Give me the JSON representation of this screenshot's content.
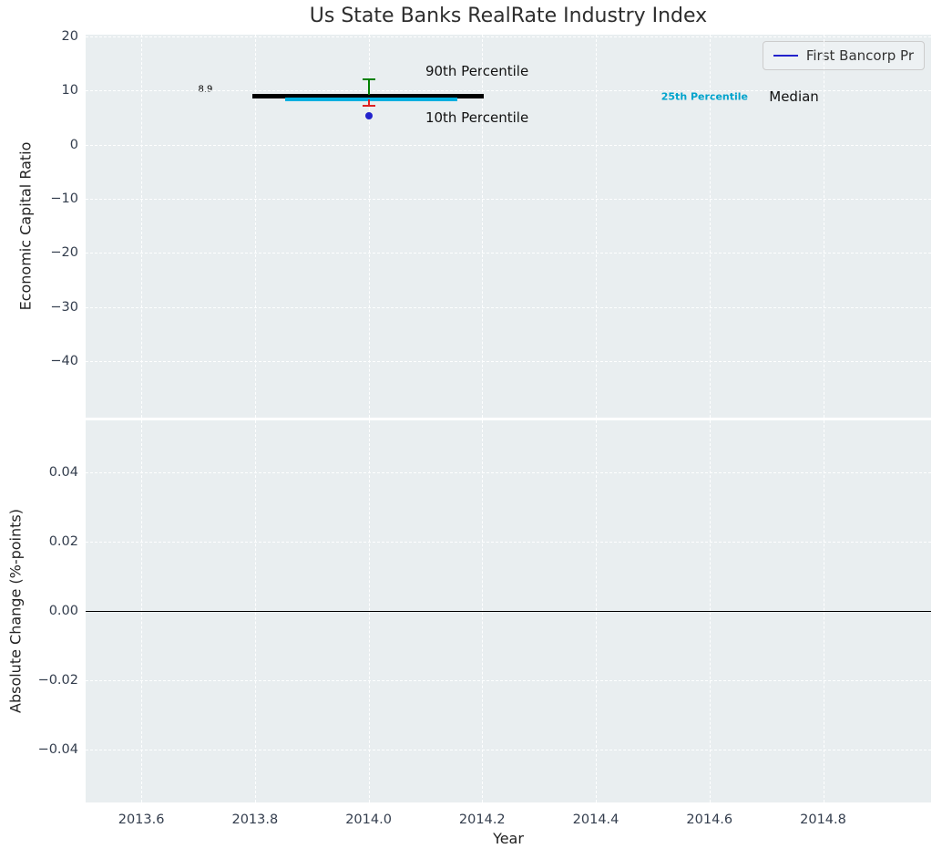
{
  "chart_data": [
    {
      "type": "line",
      "title": "Us State Banks RealRate Industry Index",
      "ylabel": "Economic Capital Ratio",
      "xlim": [
        2013.502,
        2014.99
      ],
      "ylim": [
        -50.4,
        20.3
      ],
      "xtick_values": [
        2013.6,
        2013.8,
        2014.0,
        2014.2,
        2014.4,
        2014.6,
        2014.8
      ],
      "yticks": [
        "20",
        "10",
        "0",
        "−10",
        "−20",
        "−30",
        "−40"
      ],
      "ytick_values": [
        20,
        10,
        0,
        -10,
        -20,
        -30,
        -40
      ],
      "grid": true,
      "legend": {
        "label": "First Bancorp Pr",
        "line_color": "#2222cc",
        "position": "upper right"
      },
      "series": [
        {
          "name": "Median",
          "y": 8.9,
          "x1": 2013.795,
          "x2": 2014.203,
          "color": "#000000",
          "thickness": 5
        },
        {
          "name": "25th Percentile",
          "y": 8.3,
          "x1": 2013.853,
          "x2": 2014.156,
          "color": "#00b0e0",
          "thickness": 4
        }
      ],
      "error_bars": [
        {
          "name": "90th Percentile",
          "x": 2014.0,
          "from": 9.2,
          "to": 12.0,
          "color": "#008000"
        },
        {
          "name": "10th Percentile",
          "x": 2014.0,
          "from": 8.3,
          "to": 7.1,
          "color": "#dd2222"
        }
      ],
      "points": [
        {
          "name": "First Bancorp Pr",
          "x": 2014.0,
          "y": 5.4,
          "color": "#2222cc"
        }
      ],
      "annotations": [
        {
          "text": "8.9",
          "x": 2013.7,
          "y": 10.2,
          "color": "#000000",
          "size": 10,
          "bold": false
        },
        {
          "text": "90th Percentile",
          "x": 2014.1,
          "y": 13.5,
          "color": "#111111",
          "size": 15,
          "bold": false
        },
        {
          "text": "10th Percentile",
          "x": 2014.1,
          "y": 5.0,
          "color": "#111111",
          "size": 15,
          "bold": false
        },
        {
          "text": "25th Percentile",
          "x": 2014.515,
          "y": 8.8,
          "color": "#00a3cc",
          "size": 11,
          "bold": true
        },
        {
          "text": "Median",
          "x": 2014.705,
          "y": 8.8,
          "color": "#111111",
          "size": 15,
          "bold": false
        }
      ]
    },
    {
      "type": "line",
      "ylabel": "Absolute Change (%-points)",
      "xlabel": "Year",
      "xlim": [
        2013.502,
        2014.99
      ],
      "ylim": [
        -0.0553,
        0.055
      ],
      "xticks": [
        "2013.6",
        "2013.8",
        "2014.0",
        "2014.2",
        "2014.4",
        "2014.6",
        "2014.8"
      ],
      "xtick_values": [
        2013.6,
        2013.8,
        2014.0,
        2014.2,
        2014.4,
        2014.6,
        2014.8
      ],
      "yticks": [
        "0.04",
        "0.02",
        "0.00",
        "−0.02",
        "−0.04"
      ],
      "ytick_values": [
        0.04,
        0.02,
        0.0,
        -0.02,
        -0.04
      ],
      "grid": true,
      "zero_line": 0.0
    }
  ]
}
